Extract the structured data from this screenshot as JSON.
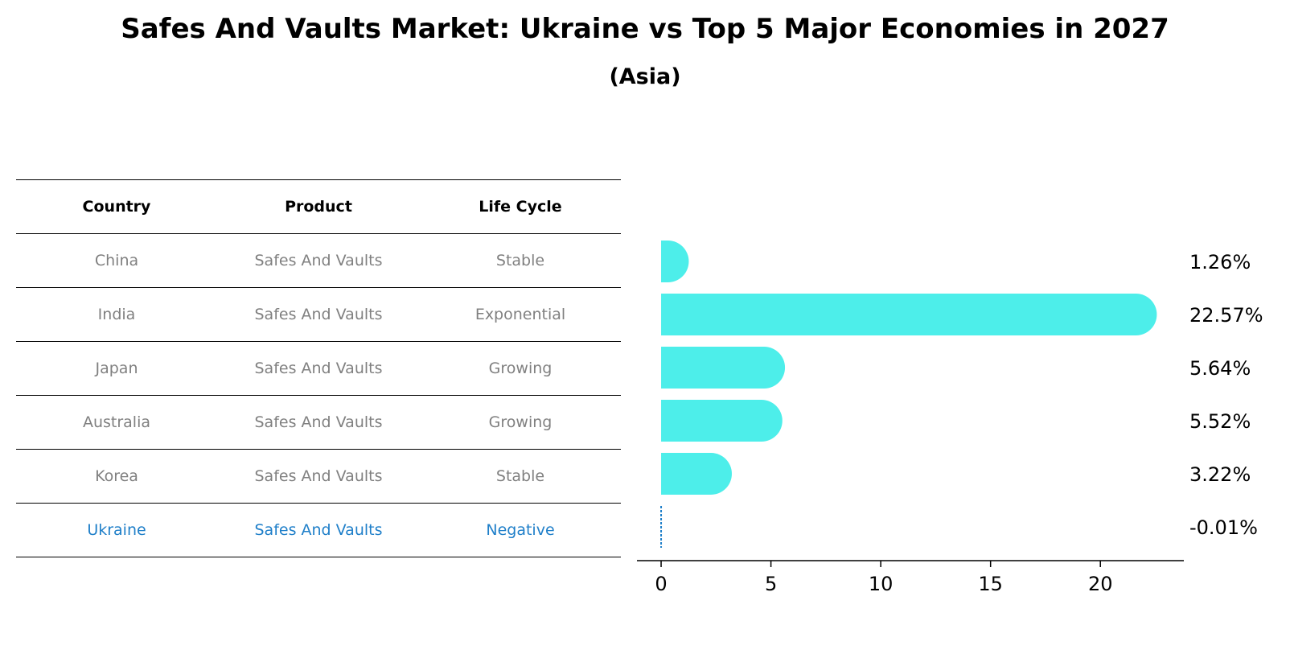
{
  "title": "Safes And Vaults Market: Ukraine vs Top 5 Major Economies in 2027",
  "subtitle": "(Asia)",
  "table": {
    "headers": [
      "Country",
      "Product",
      "Life Cycle"
    ],
    "rows": [
      {
        "country": "China",
        "product": "Safes And Vaults",
        "life_cycle": "Stable"
      },
      {
        "country": "India",
        "product": "Safes And Vaults",
        "life_cycle": "Exponential"
      },
      {
        "country": "Japan",
        "product": "Safes And Vaults",
        "life_cycle": "Growing"
      },
      {
        "country": "Australia",
        "product": "Safes And Vaults",
        "life_cycle": "Growing"
      },
      {
        "country": "Korea",
        "product": "Safes And Vaults",
        "life_cycle": "Stable"
      },
      {
        "country": "Ukraine",
        "product": "Safes And Vaults",
        "life_cycle": "Negative"
      }
    ]
  },
  "chart_data": {
    "type": "bar",
    "orientation": "horizontal",
    "categories": [
      "China",
      "India",
      "Japan",
      "Australia",
      "Korea",
      "Ukraine"
    ],
    "values": [
      1.26,
      22.57,
      5.64,
      5.52,
      3.22,
      -0.01
    ],
    "value_labels": [
      "1.26%",
      "22.57%",
      "5.64%",
      "5.52%",
      "3.22%",
      "-0.01%"
    ],
    "xlim": [
      -1.1,
      23.8
    ],
    "xticks": [
      0,
      5,
      10,
      15,
      20
    ],
    "bar_color": "#4deeea",
    "highlight_color": "#1f7fc9",
    "highlight_category": "Ukraine"
  }
}
